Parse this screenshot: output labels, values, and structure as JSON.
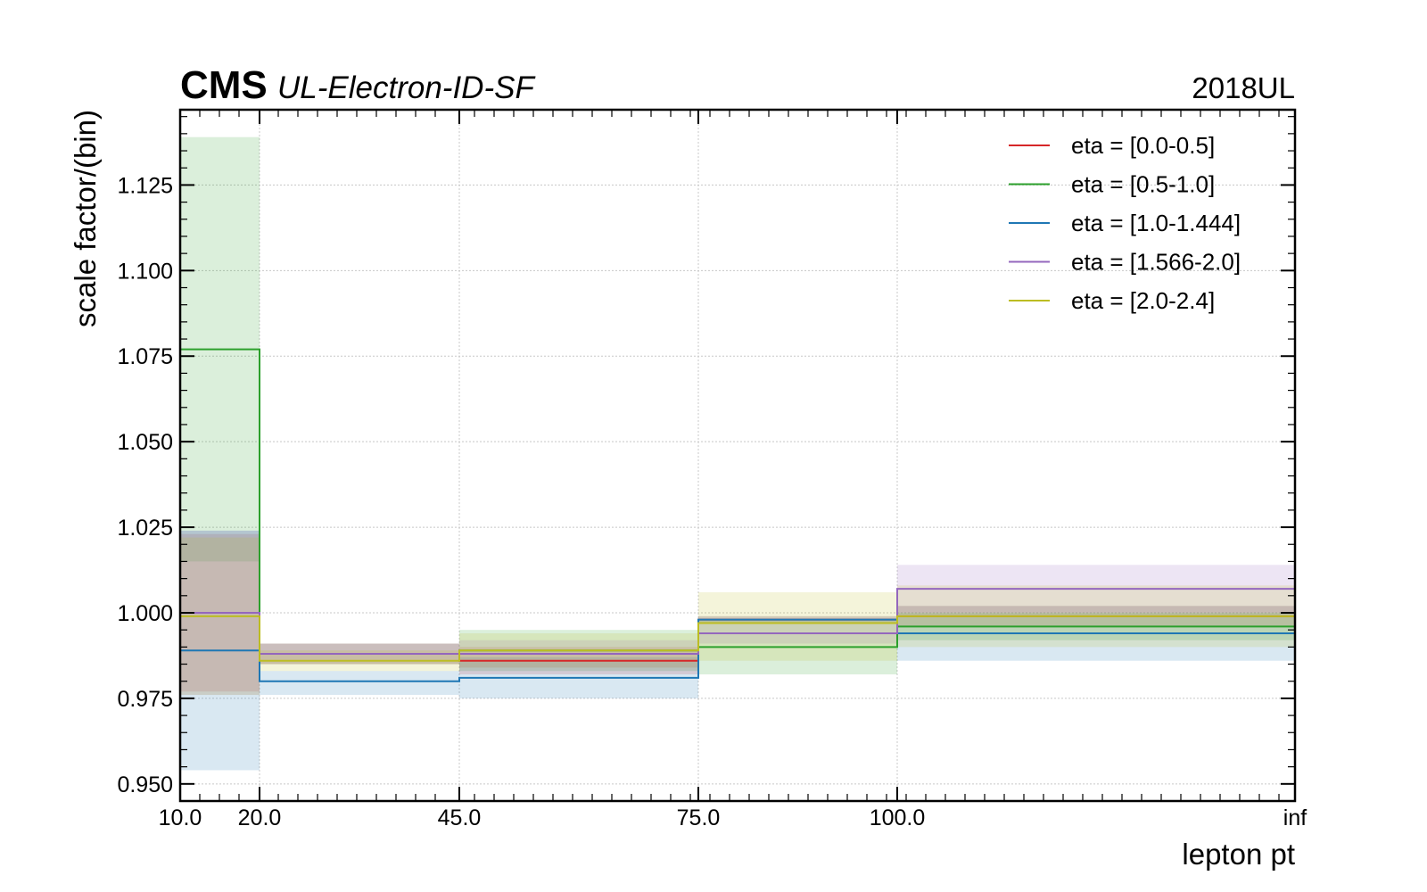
{
  "header": {
    "experiment": "CMS",
    "label": "UL-Electron-ID-SF",
    "era": "2018UL"
  },
  "chart_data": {
    "type": "line",
    "style": "step-with-uncertainty-bands",
    "xlabel": "lepton pt",
    "ylabel": "scale factor/(bin)",
    "x_bin_edges": [
      "10.0",
      "20.0",
      "45.0",
      "75.0",
      "100.0",
      "inf"
    ],
    "ylim": [
      0.945,
      1.147
    ],
    "y_ticks": [
      "0.950",
      "0.975",
      "1.000",
      "1.025",
      "1.050",
      "1.075",
      "1.100",
      "1.125"
    ],
    "y_tick_values": [
      0.95,
      0.975,
      1.0,
      1.025,
      1.05,
      1.075,
      1.1,
      1.125
    ],
    "grid": true,
    "legend_position": "top-right",
    "series": [
      {
        "name": "eta = [0.0-0.5]",
        "color": "#d62728",
        "values": [
          1.0,
          0.988,
          0.986,
          0.998,
          0.999
        ],
        "err_low": [
          0.977,
          0.985,
          0.982,
          0.997,
          0.996
        ],
        "err_high": [
          1.023,
          0.991,
          0.99,
          0.999,
          1.002
        ]
      },
      {
        "name": "eta = [0.5-1.0]",
        "color": "#2ca02c",
        "values": [
          1.077,
          0.988,
          0.989,
          0.99,
          0.996
        ],
        "err_low": [
          1.015,
          0.985,
          0.983,
          0.982,
          0.992
        ],
        "err_high": [
          1.139,
          0.991,
          0.995,
          0.998,
          1.0
        ]
      },
      {
        "name": "eta = [1.0-1.444]",
        "color": "#1f77b4",
        "values": [
          0.989,
          0.98,
          0.981,
          0.998,
          0.994
        ],
        "err_low": [
          0.954,
          0.976,
          0.975,
          0.997,
          0.986
        ],
        "err_high": [
          1.024,
          0.983,
          0.987,
          0.999,
          1.002
        ]
      },
      {
        "name": "eta = [1.566-2.0]",
        "color": "#9467bd",
        "values": [
          1.0,
          0.988,
          0.988,
          0.994,
          1.007
        ],
        "err_low": [
          0.976,
          0.985,
          0.984,
          0.991,
          1.0
        ],
        "err_high": [
          1.024,
          0.991,
          0.992,
          0.997,
          1.014
        ]
      },
      {
        "name": "eta = [2.0-2.4]",
        "color": "#bcbd22",
        "values": [
          0.999,
          0.986,
          0.989,
          0.997,
          0.999
        ],
        "err_low": [
          0.976,
          0.983,
          0.984,
          0.986,
          0.99
        ],
        "err_high": [
          1.022,
          0.989,
          0.994,
          1.006,
          1.008
        ]
      }
    ]
  }
}
